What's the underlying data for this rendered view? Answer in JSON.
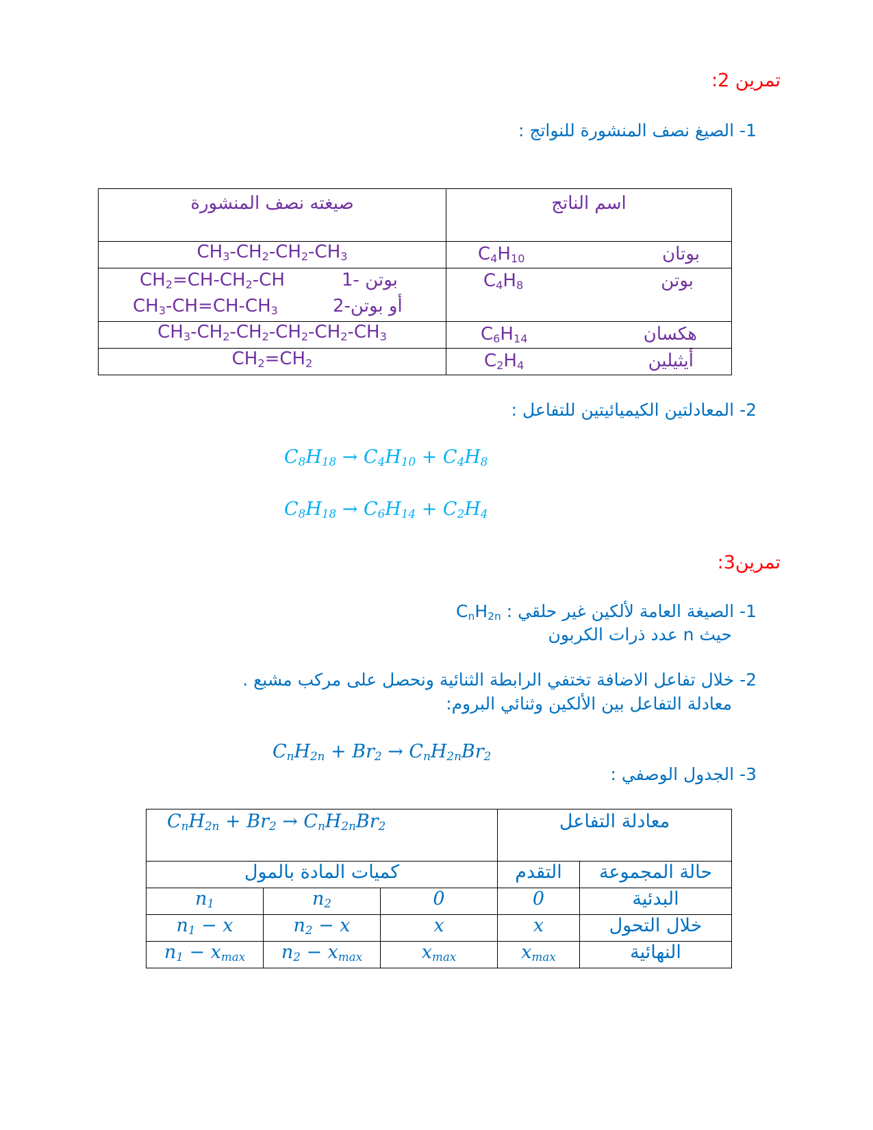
{
  "colors": {
    "heading": "#ff0000",
    "text": "#0070c0",
    "table1": "#7030a0",
    "equation": "#00b0f0"
  },
  "ex2": {
    "title": "تمرين 2:",
    "q1": "1- الصيغ نصف المنشورة للنواتج :",
    "table": {
      "headers": [
        "اسم الناتج",
        "صيغته نصف المنشورة"
      ],
      "rows": [
        {
          "name": "بوتان",
          "formula": [
            [
              "C",
              "4"
            ],
            [
              "H",
              "10"
            ]
          ],
          "semi": [
            [
              [
                "CH",
                "3"
              ],
              [
                "-CH",
                "2"
              ],
              [
                "-CH",
                "2"
              ],
              [
                "-CH",
                "3"
              ]
            ]
          ]
        },
        {
          "name": "بوتن",
          "formula": [
            [
              "C",
              "4"
            ],
            [
              "H",
              "8"
            ]
          ],
          "semi": [
            [
              [
                "CH",
                "2"
              ],
              [
                "=CH-CH",
                "2"
              ],
              [
                "-CH",
                ""
              ]
            ],
            [
              [
                "CH",
                "3"
              ],
              [
                "-CH=CH-CH",
                "3"
              ]
            ]
          ],
          "semi_labels": [
            "بوتن -1",
            "أو بوتن-2"
          ]
        },
        {
          "name": "هكسان",
          "formula": [
            [
              "C",
              "6"
            ],
            [
              "H",
              "14"
            ]
          ],
          "semi": [
            [
              [
                "CH",
                "3"
              ],
              [
                "-CH",
                "2"
              ],
              [
                "-CH",
                "2"
              ],
              [
                "-CH",
                "2"
              ],
              [
                "-CH",
                "2"
              ],
              [
                "-CH",
                "3"
              ]
            ]
          ]
        },
        {
          "name": "أيثيلين",
          "formula": [
            [
              "C",
              "2"
            ],
            [
              "H",
              "4"
            ]
          ],
          "semi": [
            [
              [
                "CH",
                "2"
              ],
              [
                "=CH",
                "2"
              ]
            ]
          ]
        }
      ]
    },
    "q2": "2- المعادلتين الكيميائيتين للتفاعل :",
    "equations": [
      [
        [
          "C",
          "8"
        ],
        [
          "H",
          "18"
        ],
        [
          " → C",
          "4"
        ],
        [
          "H",
          "10"
        ],
        [
          " + C",
          "4"
        ],
        [
          "H",
          "8"
        ]
      ],
      [
        [
          "C",
          "8"
        ],
        [
          "H",
          "18"
        ],
        [
          " → C",
          "6"
        ],
        [
          "H",
          "14"
        ],
        [
          " + C",
          "2"
        ],
        [
          "H",
          "4"
        ]
      ]
    ]
  },
  "ex3": {
    "title": "تمرين3:",
    "q1_line1": "1- الصيغة العامة لألكين غير حلقي :",
    "q1_formula": [
      [
        "C",
        "n"
      ],
      [
        "H",
        "2n"
      ]
    ],
    "q1_line2": "حيث n عدد ذرات الكربون",
    "q2_line1": "2- خلال تفاعل الاضافة تختفي الرابطة الثنائية ونحصل على مركب مشبع .",
    "q2_line2": "معادلة التفاعل بين الألكين وثنائي البروم:",
    "equation": [
      [
        "C",
        "n"
      ],
      [
        "H",
        "2n"
      ],
      [
        " + Br",
        "2"
      ],
      [
        " → C",
        "n"
      ],
      [
        "H",
        "2n"
      ],
      [
        "Br",
        "2"
      ]
    ],
    "q3": "3- الجدول الوصفي :",
    "table": {
      "eq_label": "معادلة التفاعل",
      "equation": [
        [
          "C",
          "n"
        ],
        [
          "H",
          "2n"
        ],
        [
          "  +  Br",
          "2"
        ],
        [
          "  → C",
          "n"
        ],
        [
          "H",
          "2n"
        ],
        [
          "Br",
          "2"
        ]
      ],
      "state_label": "حالة المجموعة",
      "progress_label": "التقدم",
      "amounts_label": "كميات المادة بالمول",
      "rows": [
        {
          "state": "البدئية",
          "progress": [
            [
              "0",
              ""
            ]
          ],
          "c1": [
            [
              "n",
              "1"
            ]
          ],
          "c2": [
            [
              "n",
              "2"
            ]
          ],
          "c3": [
            [
              "0",
              ""
            ]
          ]
        },
        {
          "state": "خلال التحول",
          "progress": [
            [
              "x",
              ""
            ]
          ],
          "c1": [
            [
              "n",
              "1"
            ],
            [
              " − x",
              ""
            ]
          ],
          "c2": [
            [
              "n",
              "2"
            ],
            [
              " − x",
              ""
            ]
          ],
          "c3": [
            [
              "x",
              ""
            ]
          ]
        },
        {
          "state": "النهائية",
          "progress": [
            [
              "x",
              "max"
            ]
          ],
          "c1": [
            [
              "n",
              "1"
            ],
            [
              " − x",
              "max"
            ]
          ],
          "c2": [
            [
              "n",
              "2"
            ],
            [
              " − x",
              "max"
            ]
          ],
          "c3": [
            [
              "x",
              "max"
            ]
          ]
        }
      ]
    }
  }
}
